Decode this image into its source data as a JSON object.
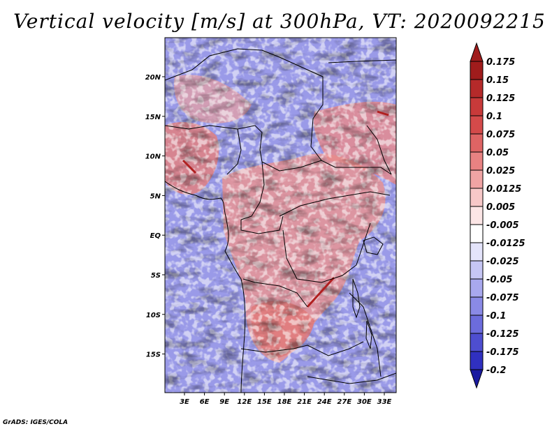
{
  "title": "Vertical velocity [m/s] at 300hPa, VT: 2020092215",
  "credit": "GrADS: IGES/COLA",
  "map": {
    "lon_range": [
      0,
      35
    ],
    "lat_range": [
      -20,
      25
    ],
    "x_tick_labels": [
      "3E",
      "6E",
      "9E",
      "12E",
      "15E",
      "18E",
      "21E",
      "24E",
      "27E",
      "30E",
      "33E"
    ],
    "y_tick_labels": [
      "20N",
      "15N",
      "10N",
      "5N",
      "EQ",
      "5S",
      "10S",
      "15S"
    ]
  },
  "colorbar": {
    "levels": [
      "0.175",
      "0.15",
      "0.125",
      "0.1",
      "0.075",
      "0.05",
      "0.025",
      "0.0125",
      "0.005",
      "-0.005",
      "-0.0125",
      "-0.025",
      "-0.05",
      "-0.075",
      "-0.1",
      "-0.125",
      "-0.175",
      "-0.2"
    ],
    "colors": [
      "#a01c1c",
      "#b52a2a",
      "#c83a3a",
      "#d44a4a",
      "#de6464",
      "#e88282",
      "#f0a4a4",
      "#f7c8c8",
      "#fce6e6",
      "#ffffff",
      "#e4e4fb",
      "#c6c6f4",
      "#a8a8ee",
      "#8a8ae6",
      "#6c6cdc",
      "#4e4ed0",
      "#3030c0",
      "#1a1aa0"
    ]
  }
}
